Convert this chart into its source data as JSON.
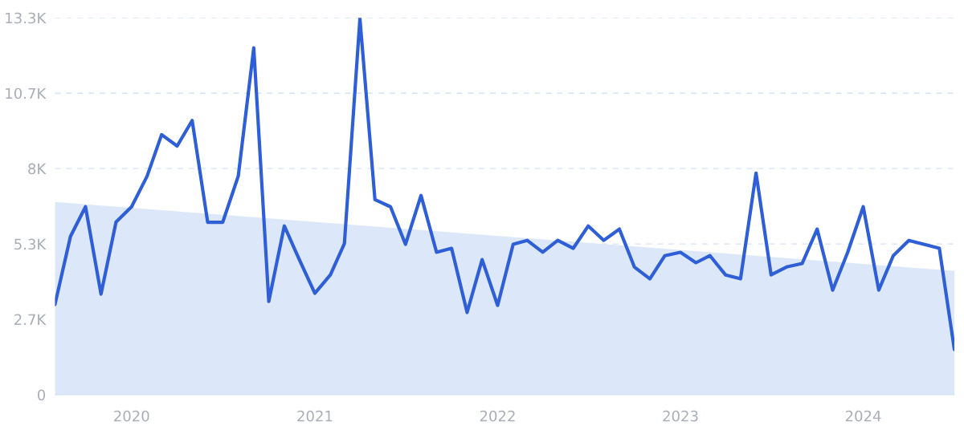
{
  "chart_data": {
    "type": "line",
    "x": [
      "2019-08",
      "2019-09",
      "2019-10",
      "2019-11",
      "2019-12",
      "2020-01",
      "2020-02",
      "2020-03",
      "2020-04",
      "2020-05",
      "2020-06",
      "2020-07",
      "2020-08",
      "2020-09",
      "2020-10",
      "2020-11",
      "2020-12",
      "2021-01",
      "2021-02",
      "2021-03",
      "2021-04",
      "2021-05",
      "2021-06",
      "2021-07",
      "2021-08",
      "2021-09",
      "2021-10",
      "2021-11",
      "2021-12",
      "2022-01",
      "2022-02",
      "2022-03",
      "2022-04",
      "2022-05",
      "2022-06",
      "2022-07",
      "2022-08",
      "2022-09",
      "2022-10",
      "2022-11",
      "2022-12",
      "2023-01",
      "2023-02",
      "2023-03",
      "2023-04",
      "2023-05",
      "2023-06",
      "2023-07",
      "2023-08",
      "2023-09",
      "2023-10",
      "2023-11",
      "2023-12",
      "2024-01",
      "2024-02",
      "2024-03",
      "2024-04",
      "2024-05",
      "2024-06",
      "2024-07"
    ],
    "series": [
      {
        "type": "area",
        "color": "#dce8fa",
        "x": [
          "2019-08",
          "2024-07"
        ],
        "values": [
          6820,
          4380
        ]
      },
      {
        "color": "#2f5fd6",
        "values": [
          3190,
          5600,
          6650,
          3560,
          6110,
          6650,
          7730,
          9200,
          8800,
          9700,
          6100,
          6100,
          7730,
          12270,
          3300,
          5970,
          4780,
          3590,
          4240,
          5350,
          13300,
          6900,
          6650,
          5320,
          7050,
          5040,
          5180,
          2910,
          4780,
          3160,
          5320,
          5460,
          5040,
          5460,
          5180,
          5970,
          5460,
          5860,
          4520,
          4100,
          4920,
          5040,
          4670,
          4920,
          4240,
          4100,
          7840,
          4240,
          4520,
          4640,
          5860,
          3700,
          5040,
          6650,
          3700,
          4920,
          5460,
          5320,
          5180,
          1600
        ]
      }
    ],
    "xlim": [
      "2019-08",
      "2024-07"
    ],
    "xticks": [
      {
        "value": "2020",
        "label": "2020"
      },
      {
        "value": "2021",
        "label": "2021"
      },
      {
        "value": "2022",
        "label": "2022"
      },
      {
        "value": "2023",
        "label": "2023"
      },
      {
        "value": "2024",
        "label": "2024"
      }
    ],
    "ylim": [
      0,
      13333
    ],
    "yticks": [
      0,
      {
        "value": 2667,
        "label": "2.7K"
      },
      {
        "value": 5333,
        "label": "5.3K"
      },
      {
        "value": 8000,
        "label": "8K"
      },
      {
        "value": 10667,
        "label": "10.7K"
      },
      {
        "value": 13333,
        "label": "13.3K"
      }
    ],
    "grid": "y",
    "marker": "none",
    "line_style": "solid"
  }
}
